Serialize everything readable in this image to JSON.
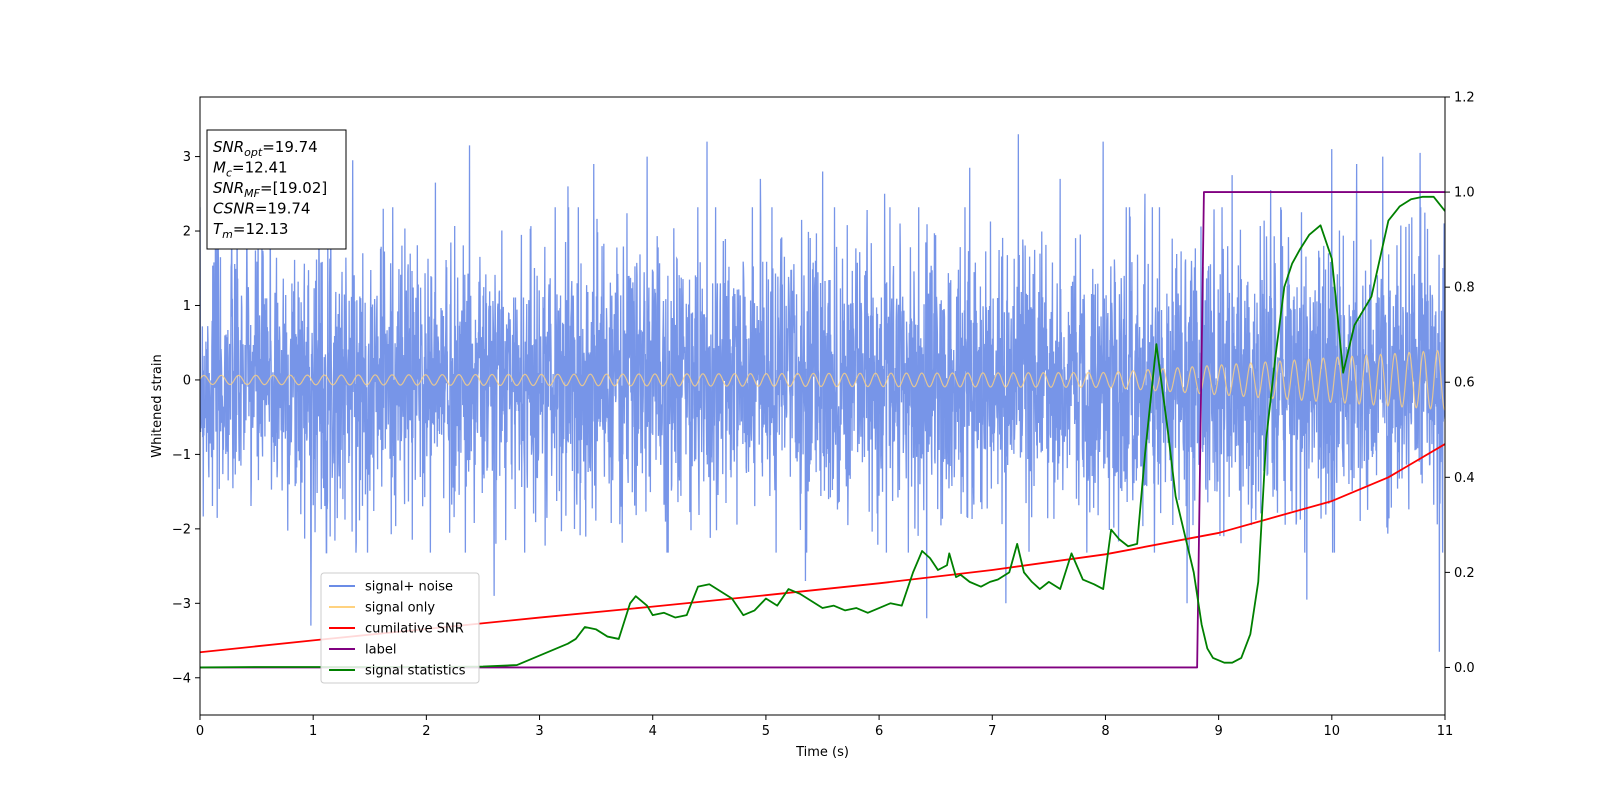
{
  "chart_data": {
    "type": "line",
    "xlabel": "Time (s)",
    "ylabel": "Whitened strain",
    "xlim": [
      0,
      11
    ],
    "ylim": [
      -4.5,
      3.8
    ],
    "ylim_right": [
      -0.1,
      1.2
    ],
    "x_ticks": [
      0,
      1,
      2,
      3,
      4,
      5,
      6,
      7,
      8,
      9,
      10,
      11
    ],
    "y_ticks": [
      -4,
      -3,
      -2,
      -1,
      0,
      1,
      2,
      3
    ],
    "y_ticks_right": [
      0.0,
      0.2,
      0.4,
      0.6,
      0.8,
      1.0,
      1.2
    ],
    "x_tick_labels": [
      "0",
      "1",
      "2",
      "3",
      "4",
      "5",
      "6",
      "7",
      "8",
      "9",
      "10",
      "11"
    ],
    "y_tick_labels": [
      "−4",
      "−3",
      "−2",
      "−1",
      "0",
      "1",
      "2",
      "3"
    ],
    "y_tick_labels_right": [
      "0.0",
      "0.2",
      "0.4",
      "0.6",
      "0.8",
      "1.0",
      "1.2"
    ],
    "grid": false,
    "legend_position": "lower-left",
    "legend": [
      {
        "label": "signal+ noise",
        "color": "#6b8ce6"
      },
      {
        "label": "signal only",
        "color": "#ffd27f"
      },
      {
        "label": "cumilative SNR",
        "color": "#ff0000"
      },
      {
        "label": "label",
        "color": "#800080"
      },
      {
        "label": "signal statistics",
        "color": "#008000"
      }
    ],
    "info_box": {
      "position": "top-left",
      "lines": [
        {
          "main": "SNR",
          "sub": "opt",
          "rest": "=19.74"
        },
        {
          "main": "M",
          "sub": "c",
          "rest": "=12.41"
        },
        {
          "main": "SNR",
          "sub": "MF",
          "rest": "=[19.02]"
        },
        {
          "main": "CSNR",
          "sub": "",
          "rest": "=19.74"
        },
        {
          "main": "T",
          "sub": "m",
          "rest": "=12.13"
        }
      ]
    },
    "series": [
      {
        "name": "signal+ noise",
        "axis": "left",
        "color": "#6b8ce6",
        "style": "noise",
        "envelope": [
          [
            0,
            1.45
          ],
          [
            11,
            1.45
          ]
        ],
        "spikes": [
          [
            0.15,
            2.4
          ],
          [
            0.62,
            2.55
          ],
          [
            0.98,
            -3.3
          ],
          [
            1.35,
            2.95
          ],
          [
            1.62,
            2.3
          ],
          [
            2.08,
            2.65
          ],
          [
            2.38,
            3.15
          ],
          [
            2.6,
            -2.9
          ],
          [
            3.25,
            2.6
          ],
          [
            3.48,
            2.9
          ],
          [
            3.95,
            3.0
          ],
          [
            4.48,
            3.2
          ],
          [
            4.95,
            2.7
          ],
          [
            5.35,
            -2.7
          ],
          [
            5.5,
            2.8
          ],
          [
            6.05,
            2.5
          ],
          [
            6.42,
            -3.2
          ],
          [
            6.8,
            2.85
          ],
          [
            7.12,
            -3.0
          ],
          [
            7.23,
            3.3
          ],
          [
            7.6,
            2.7
          ],
          [
            7.98,
            3.2
          ],
          [
            8.35,
            2.5
          ],
          [
            8.72,
            -3.0
          ],
          [
            9.12,
            2.75
          ],
          [
            9.46,
            2.55
          ],
          [
            9.78,
            -2.95
          ],
          [
            10.0,
            3.1
          ],
          [
            10.22,
            2.9
          ],
          [
            10.45,
            3.0
          ],
          [
            10.78,
            3.05
          ],
          [
            10.95,
            -3.65
          ]
        ]
      },
      {
        "name": "signal only",
        "axis": "left",
        "color": "#ffd27f",
        "style": "chirp",
        "amplitude": [
          [
            0,
            0.06
          ],
          [
            8,
            0.1
          ],
          [
            11,
            0.4
          ]
        ],
        "cycles_per_second": [
          [
            0,
            6.5
          ],
          [
            11,
            8
          ]
        ]
      },
      {
        "name": "cumilative SNR",
        "axis": "right",
        "color": "#ff0000",
        "x": [
          0,
          1,
          2,
          3,
          4,
          5,
          6,
          7,
          8,
          9,
          10,
          10.5,
          11
        ],
        "y": [
          0.032,
          0.057,
          0.081,
          0.105,
          0.128,
          0.152,
          0.177,
          0.205,
          0.238,
          0.283,
          0.35,
          0.4,
          0.47
        ]
      },
      {
        "name": "label",
        "axis": "right",
        "color": "#800080",
        "x": [
          0,
          8.81,
          8.87,
          11
        ],
        "y": [
          0,
          0,
          1.0,
          1.0
        ]
      },
      {
        "name": "signal statistics",
        "axis": "right",
        "color": "#008000",
        "x": [
          0,
          0.5,
          1,
          1.5,
          2,
          2.5,
          2.8,
          3.0,
          3.15,
          3.25,
          3.32,
          3.4,
          3.5,
          3.6,
          3.7,
          3.8,
          3.85,
          3.95,
          4.0,
          4.1,
          4.2,
          4.3,
          4.4,
          4.5,
          4.6,
          4.7,
          4.8,
          4.9,
          5.0,
          5.1,
          5.2,
          5.3,
          5.4,
          5.5,
          5.6,
          5.7,
          5.8,
          5.9,
          6.0,
          6.1,
          6.2,
          6.3,
          6.38,
          6.45,
          6.52,
          6.6,
          6.62,
          6.68,
          6.72,
          6.8,
          6.9,
          6.98,
          7.05,
          7.15,
          7.22,
          7.28,
          7.35,
          7.42,
          7.5,
          7.6,
          7.7,
          7.8,
          7.9,
          7.98,
          8.05,
          8.12,
          8.2,
          8.28,
          8.35,
          8.45,
          8.55,
          8.62,
          8.7,
          8.78,
          8.85,
          8.9,
          8.95,
          9.05,
          9.12,
          9.2,
          9.28,
          9.35,
          9.42,
          9.5,
          9.58,
          9.65,
          9.72,
          9.8,
          9.9,
          10.0,
          10.1,
          10.2,
          10.35,
          10.5,
          10.6,
          10.7,
          10.8,
          10.9,
          11.0
        ],
        "y": [
          0.0,
          0.001,
          0.001,
          0.001,
          0.001,
          0.002,
          0.005,
          0.025,
          0.04,
          0.05,
          0.06,
          0.085,
          0.08,
          0.065,
          0.06,
          0.135,
          0.15,
          0.13,
          0.11,
          0.115,
          0.105,
          0.11,
          0.17,
          0.175,
          0.16,
          0.145,
          0.11,
          0.12,
          0.145,
          0.13,
          0.165,
          0.155,
          0.14,
          0.125,
          0.13,
          0.12,
          0.125,
          0.115,
          0.125,
          0.135,
          0.13,
          0.2,
          0.245,
          0.23,
          0.205,
          0.215,
          0.24,
          0.19,
          0.195,
          0.18,
          0.17,
          0.18,
          0.185,
          0.2,
          0.26,
          0.2,
          0.18,
          0.165,
          0.18,
          0.165,
          0.24,
          0.185,
          0.175,
          0.165,
          0.29,
          0.27,
          0.255,
          0.26,
          0.45,
          0.68,
          0.5,
          0.36,
          0.28,
          0.2,
          0.09,
          0.04,
          0.02,
          0.01,
          0.01,
          0.02,
          0.07,
          0.18,
          0.48,
          0.65,
          0.8,
          0.85,
          0.88,
          0.91,
          0.93,
          0.86,
          0.62,
          0.72,
          0.78,
          0.94,
          0.97,
          0.985,
          0.99,
          0.99,
          0.96
        ]
      }
    ]
  }
}
